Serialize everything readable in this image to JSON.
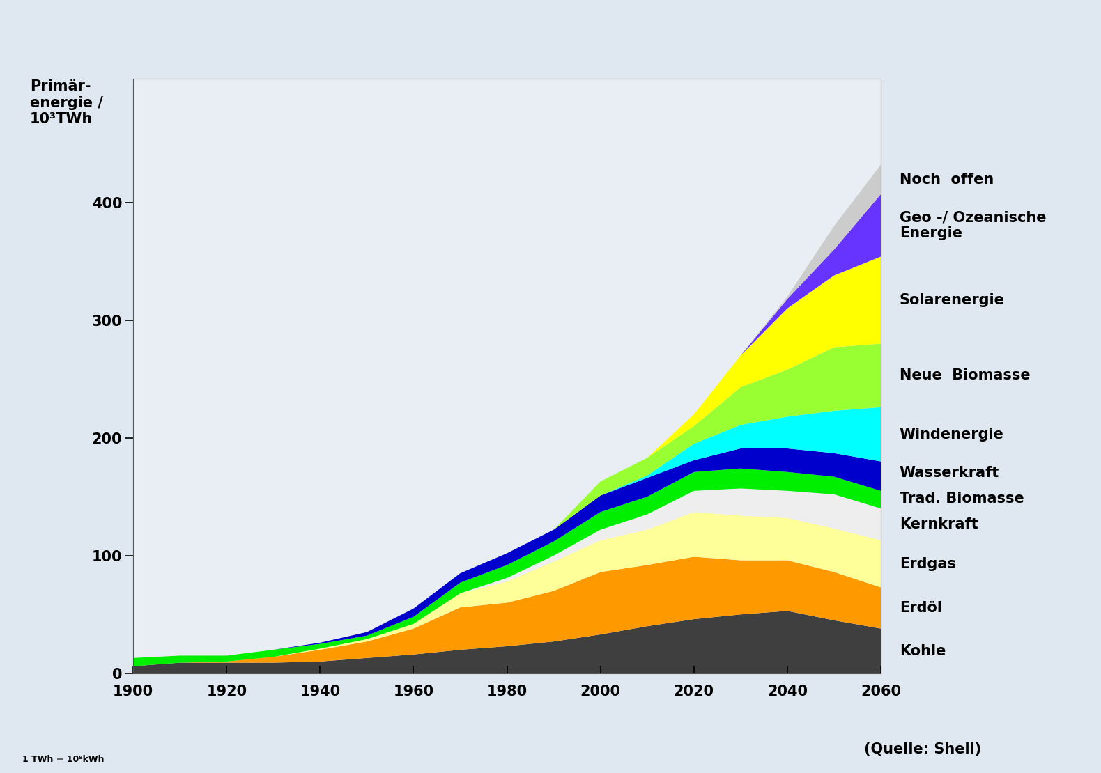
{
  "chart_data": {
    "type": "stacked_area",
    "y_label": "Primär-\nenergie /\n10³TWh",
    "note": "1 TWh = 10⁹kWh",
    "source": "(Quelle: Shell)",
    "x": [
      1900,
      1910,
      1920,
      1930,
      1940,
      1950,
      1960,
      1970,
      1980,
      1990,
      2000,
      2010,
      2020,
      2030,
      2040,
      2050,
      2060
    ],
    "xlim": [
      1900,
      2060
    ],
    "xticks": [
      1900,
      1920,
      1940,
      1960,
      1980,
      2000,
      2020,
      2040,
      2060
    ],
    "ylim": [
      0,
      505
    ],
    "yticks": [
      0,
      100,
      200,
      300,
      400
    ],
    "stacked": true,
    "grid": false,
    "series": [
      {
        "name": "Kohle",
        "color": "#3f3f3f",
        "values": [
          6,
          9,
          9,
          9,
          10,
          13,
          16,
          20,
          23,
          27,
          33,
          40,
          46,
          50,
          53,
          45,
          38
        ]
      },
      {
        "name": "Erdöl",
        "color": "#ff9900",
        "values": [
          0,
          0,
          1,
          5,
          10,
          14,
          22,
          36,
          37,
          43,
          53,
          52,
          53,
          46,
          43,
          41,
          35
        ]
      },
      {
        "name": "Erdgas",
        "color": "#ffff99",
        "values": [
          0,
          0,
          0,
          0,
          1,
          2,
          4,
          12,
          18,
          25,
          27,
          30,
          38,
          38,
          36,
          37,
          40
        ]
      },
      {
        "name": "Kernkraft",
        "color": "#eeeeee",
        "values": [
          0,
          0,
          0,
          0,
          0,
          0,
          0,
          0,
          3,
          5,
          9,
          13,
          18,
          23,
          23,
          29,
          27
        ]
      },
      {
        "name": "Trad. Biomasse",
        "color": "#00ee00",
        "values": [
          7,
          6,
          5,
          6,
          4,
          3,
          6,
          9,
          11,
          12,
          15,
          15,
          16,
          17,
          16,
          15,
          15
        ]
      },
      {
        "name": "Wasserkraft",
        "color": "#0000cc",
        "values": [
          0,
          0,
          0,
          0,
          1,
          3,
          7,
          8,
          10,
          10,
          14,
          16,
          10,
          17,
          20,
          20,
          25
        ]
      },
      {
        "name": "Windenergie",
        "color": "#00ffff",
        "values": [
          0,
          0,
          0,
          0,
          0,
          0,
          0,
          0,
          0,
          0,
          0,
          2,
          14,
          20,
          27,
          36,
          46
        ]
      },
      {
        "name": "Neue  Biomasse",
        "color": "#99ff33",
        "values": [
          0,
          0,
          0,
          0,
          0,
          0,
          0,
          0,
          0,
          0,
          12,
          15,
          15,
          32,
          40,
          54,
          54
        ]
      },
      {
        "name": "Solarenergie",
        "color": "#ffff00",
        "values": [
          0,
          0,
          0,
          0,
          0,
          0,
          0,
          0,
          0,
          0,
          0,
          0,
          10,
          27,
          52,
          61,
          74
        ]
      },
      {
        "name": "Geo -/ Ozeanische\nEnergie",
        "color": "#6633ff",
        "values": [
          0,
          0,
          0,
          0,
          0,
          0,
          0,
          0,
          0,
          0,
          0,
          0,
          0,
          0,
          8,
          22,
          53
        ]
      },
      {
        "name": "Noch  offen",
        "color": "#cccccc",
        "values": [
          0,
          0,
          0,
          0,
          0,
          0,
          0,
          0,
          0,
          0,
          0,
          0,
          0,
          0,
          2,
          20,
          25
        ]
      }
    ]
  }
}
